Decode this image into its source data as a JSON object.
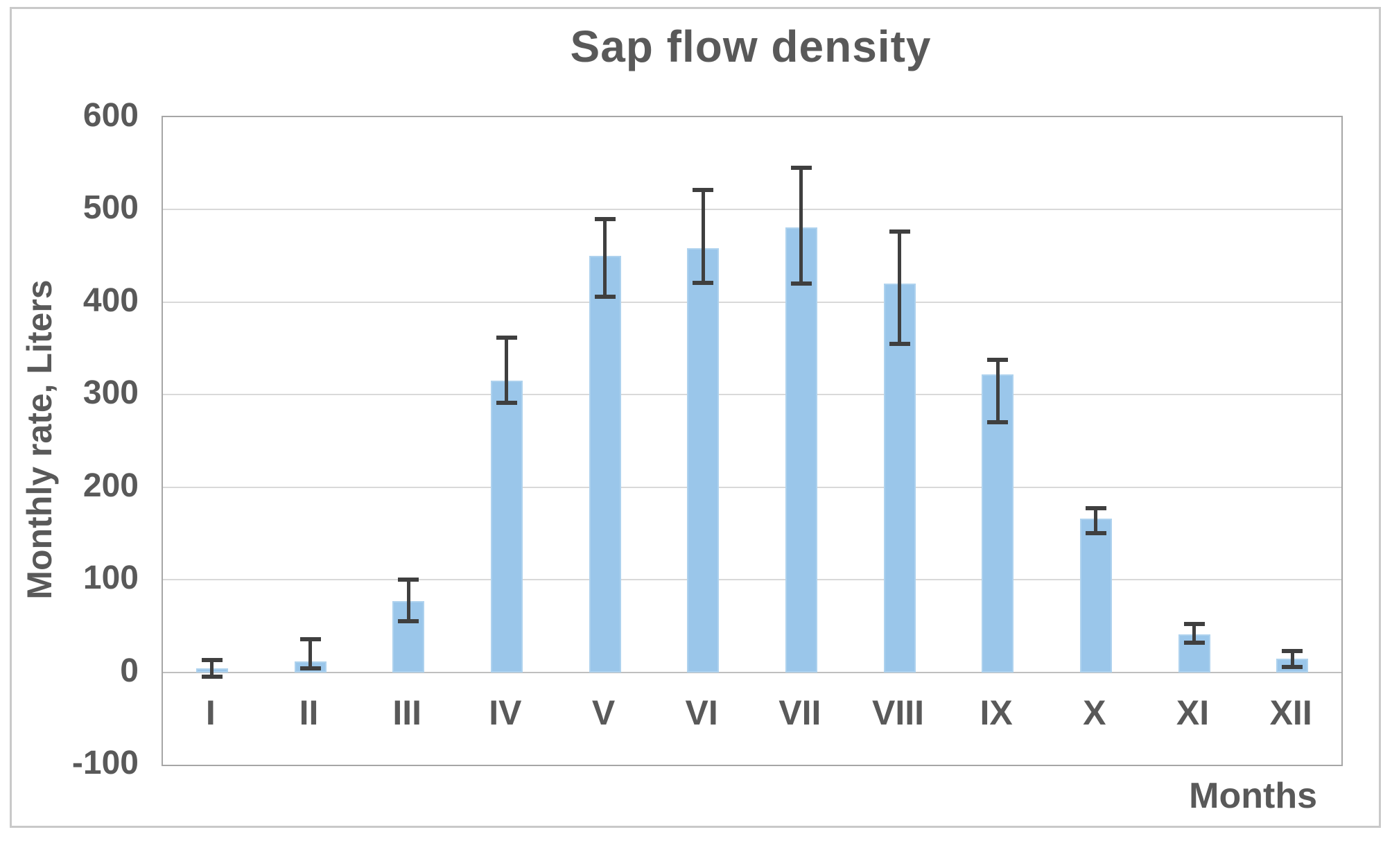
{
  "figure": {
    "title": "Sap flow density",
    "y_axis_title": "Monthly rate, Liters",
    "x_axis_title": "Months"
  },
  "chart_data": {
    "type": "bar",
    "title": "Sap flow density",
    "xlabel": "Months",
    "ylabel": "Monthly rate, Liters",
    "categories": [
      "I",
      "II",
      "III",
      "IV",
      "V",
      "VI",
      "VII",
      "VIII",
      "IX",
      "X",
      "XI",
      "XII"
    ],
    "values": [
      4,
      12,
      77,
      315,
      450,
      458,
      481,
      420,
      322,
      166,
      41,
      15
    ],
    "error_bars": {
      "cap_top_values": [
        13,
        36,
        100,
        362,
        490,
        521,
        545,
        476,
        338,
        177,
        52,
        23
      ],
      "cap_bottom_values": [
        -5,
        4,
        55,
        291,
        406,
        421,
        420,
        355,
        270,
        150,
        32,
        6
      ]
    },
    "ylim": [
      -100,
      600
    ],
    "yticks": [
      600,
      500,
      400,
      300,
      200,
      100,
      0,
      -100
    ],
    "grid": true,
    "legend": false,
    "colors": {
      "bar_fill": "#9ac6ea",
      "error_bar": "#3f3f3f",
      "text": "#595959",
      "gridline": "#d9d9d9",
      "zero_line": "#bfbfbf",
      "plot_border": "#a6a6a6",
      "figure_frame": "#c9c9c9"
    }
  }
}
